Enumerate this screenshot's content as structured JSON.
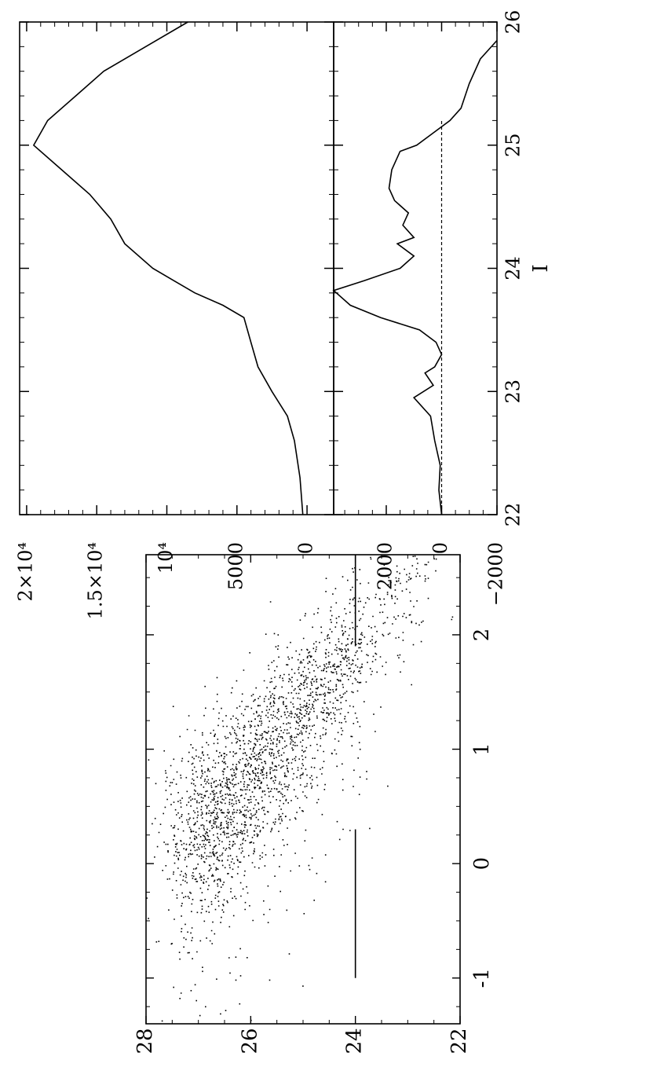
{
  "chart_data": [
    {
      "id": "cmd",
      "type": "scatter",
      "xlabel": "",
      "ylabel": "",
      "xlim": [
        -1.4,
        2.7
      ],
      "ylim": [
        22,
        28
      ],
      "y_inverted": true,
      "xticks": [
        "-1",
        "0",
        "1",
        "2"
      ],
      "yticks": [
        "22",
        "24",
        "26",
        "28"
      ],
      "point_color": "#000000",
      "distribution": {
        "ridge": [
          [
            2.7,
            22.6
          ],
          [
            2.2,
            23.3
          ],
          [
            1.7,
            24.3
          ],
          [
            1.2,
            25.2
          ],
          [
            0.8,
            26.0
          ],
          [
            0.4,
            26.6
          ],
          [
            0.1,
            27.2
          ]
        ],
        "dense_from_mag": 23.9,
        "n_points": 9000
      },
      "horizontal_lines": [
        {
          "y": 24.0,
          "x_from": -1.0,
          "x_to": 0.3
        },
        {
          "y": 24.0,
          "x_from": 1.9,
          "x_to": 2.7
        }
      ]
    },
    {
      "id": "luminosity-function",
      "type": "line",
      "xlim": [
        22,
        26
      ],
      "ylim": [
        -500,
        20500
      ],
      "yticks": [
        {
          "value": 0,
          "label": "0"
        },
        {
          "value": 5000,
          "label": "5000"
        },
        {
          "value": 10000,
          "label": "10⁴"
        },
        {
          "value": 15000,
          "label": "1.5×10⁴"
        },
        {
          "value": 20000,
          "label": "2×10⁴"
        }
      ],
      "x": [
        22.0,
        22.3,
        22.6,
        22.8,
        23.0,
        23.2,
        23.4,
        23.6,
        23.7,
        23.8,
        23.9,
        24.0,
        24.2,
        24.4,
        24.6,
        24.8,
        25.0,
        25.2,
        25.4,
        25.6,
        25.8,
        26.0
      ],
      "y": [
        300,
        500,
        900,
        1400,
        2500,
        3500,
        4000,
        4500,
        6000,
        8000,
        9500,
        11000,
        13000,
        14000,
        15500,
        17500,
        19500,
        18500,
        16500,
        14500,
        11500,
        8500
      ]
    },
    {
      "id": "edge-filter-response",
      "type": "line",
      "xlabel": "I",
      "xlim": [
        22,
        26
      ],
      "ylim": [
        -2000,
        3900
      ],
      "xticks": [
        "22",
        "23",
        "24",
        "25",
        "26"
      ],
      "yticks": [
        {
          "value": -2000,
          "label": "−2000"
        },
        {
          "value": 0,
          "label": "0"
        },
        {
          "value": 2000,
          "label": "2000"
        }
      ],
      "zero_line": true,
      "x": [
        22.0,
        22.2,
        22.4,
        22.6,
        22.8,
        22.95,
        23.05,
        23.15,
        23.2,
        23.3,
        23.4,
        23.5,
        23.6,
        23.7,
        23.82,
        23.9,
        24.0,
        24.1,
        24.2,
        24.25,
        24.35,
        24.45,
        24.55,
        24.65,
        24.8,
        24.95,
        25.0,
        25.1,
        25.2,
        25.3,
        25.5,
        25.7,
        25.85
      ],
      "y": [
        0,
        100,
        50,
        250,
        400,
        1000,
        300,
        600,
        250,
        0,
        200,
        800,
        2200,
        3300,
        3900,
        2800,
        1500,
        1000,
        1600,
        1000,
        1400,
        1200,
        1700,
        1900,
        1800,
        1500,
        900,
        300,
        -300,
        -700,
        -1000,
        -1400,
        -2000
      ]
    }
  ]
}
